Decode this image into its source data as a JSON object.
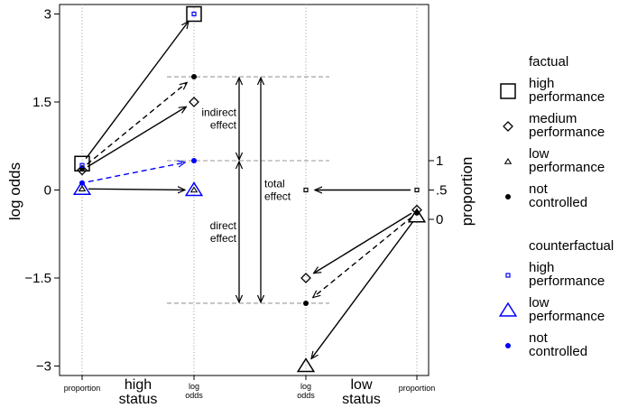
{
  "chart_data": {
    "type": "line",
    "ylabel": "log odds",
    "ylabel_right": "proportion",
    "ylim": [
      -3.15,
      3.15
    ],
    "y_ticks": [
      "3",
      "1.5",
      "0",
      "−1.5",
      "−3"
    ],
    "y_tick_values": [
      3,
      1.5,
      0,
      -1.5,
      -3
    ],
    "right_ticks": [
      {
        "label": "1",
        "log_odds": 0.5
      },
      {
        "label": ".5",
        "log_odds": 0
      },
      {
        "label": "0",
        "log_odds": -0.5
      }
    ],
    "x_columns": [
      {
        "key": "hs_prop",
        "label": "proportion"
      },
      {
        "key": "hs_logodds",
        "label": "log odds"
      },
      {
        "key": "ls_logodds",
        "label": "log odds"
      },
      {
        "key": "ls_prop",
        "label": "proportion"
      }
    ],
    "group_labels": [
      {
        "text": "high status",
        "between": [
          "hs_prop",
          "hs_logodds"
        ]
      },
      {
        "text": "low status",
        "between": [
          "ls_logodds",
          "ls_prop"
        ]
      }
    ],
    "points": [
      {
        "col": "hs_prop",
        "y": 0.45,
        "shape": "square",
        "color": "#000000",
        "size": "large"
      },
      {
        "col": "hs_prop",
        "y": 0.34,
        "shape": "diamond",
        "color": "#000000",
        "size": "medium"
      },
      {
        "col": "hs_prop",
        "y": 0.37,
        "shape": "circle",
        "color": "#000000",
        "size": "small"
      },
      {
        "col": "hs_prop",
        "y": 0.42,
        "shape": "square",
        "color": "#0000ff",
        "size": "tiny"
      },
      {
        "col": "hs_prop",
        "y": 0.12,
        "shape": "circle",
        "color": "#0000ff",
        "size": "small"
      },
      {
        "col": "hs_prop",
        "y": 0.02,
        "shape": "triangle",
        "color": "#0000ff",
        "size": "large"
      },
      {
        "col": "hs_prop",
        "y": 0.02,
        "shape": "triangle",
        "color": "#000000",
        "size": "small"
      },
      {
        "col": "hs_logodds",
        "y": 3.0,
        "shape": "square",
        "color": "#000000",
        "size": "large"
      },
      {
        "col": "hs_logodds",
        "y": 3.0,
        "shape": "square",
        "color": "#0000ff",
        "size": "tiny"
      },
      {
        "col": "hs_logodds",
        "y": 1.93,
        "shape": "circle",
        "color": "#000000",
        "size": "small"
      },
      {
        "col": "hs_logodds",
        "y": 1.5,
        "shape": "diamond",
        "color": "#000000",
        "size": "medium"
      },
      {
        "col": "hs_logodds",
        "y": 0.5,
        "shape": "circle",
        "color": "#0000ff",
        "size": "small"
      },
      {
        "col": "hs_logodds",
        "y": 0.0,
        "shape": "triangle",
        "color": "#0000ff",
        "size": "large"
      },
      {
        "col": "hs_logodds",
        "y": 0.0,
        "shape": "triangle",
        "color": "#000000",
        "size": "small"
      },
      {
        "col": "ls_logodds",
        "y": 0.0,
        "shape": "square",
        "color": "#000000",
        "size": "tiny"
      },
      {
        "col": "ls_logodds",
        "y": -1.5,
        "shape": "diamond",
        "color": "#000000",
        "size": "medium"
      },
      {
        "col": "ls_logodds",
        "y": -1.93,
        "shape": "circle",
        "color": "#000000",
        "size": "small"
      },
      {
        "col": "ls_logodds",
        "y": -3.0,
        "shape": "triangle",
        "color": "#000000",
        "size": "large"
      },
      {
        "col": "ls_prop",
        "y": 0.0,
        "shape": "square",
        "color": "#000000",
        "size": "tiny"
      },
      {
        "col": "ls_prop",
        "y": -0.34,
        "shape": "diamond",
        "color": "#000000",
        "size": "medium"
      },
      {
        "col": "ls_prop",
        "y": -0.39,
        "shape": "circle",
        "color": "#000000",
        "size": "small"
      },
      {
        "col": "ls_prop",
        "y": -0.45,
        "shape": "triangle",
        "color": "#000000",
        "size": "large"
      }
    ],
    "arrows": [
      {
        "from": [
          "hs_prop",
          0.45
        ],
        "to": [
          "hs_logodds",
          3.0
        ],
        "dash": false,
        "color": "#000000"
      },
      {
        "from": [
          "hs_prop",
          0.37
        ],
        "to": [
          "hs_logodds",
          1.93
        ],
        "dash": true,
        "color": "#000000"
      },
      {
        "from": [
          "hs_prop",
          0.34
        ],
        "to": [
          "hs_logodds",
          1.5
        ],
        "dash": false,
        "color": "#000000"
      },
      {
        "from": [
          "hs_prop",
          0.12
        ],
        "to": [
          "hs_logodds",
          0.5
        ],
        "dash": true,
        "color": "#0000ff"
      },
      {
        "from": [
          "hs_prop",
          0.02
        ],
        "to": [
          "hs_logodds",
          0.0
        ],
        "dash": false,
        "color": "#000000"
      },
      {
        "from": [
          "ls_prop",
          0.0
        ],
        "to": [
          "ls_logodds",
          0.0
        ],
        "dash": false,
        "color": "#000000"
      },
      {
        "from": [
          "ls_prop",
          -0.34
        ],
        "to": [
          "ls_logodds",
          -1.5
        ],
        "dash": false,
        "color": "#000000"
      },
      {
        "from": [
          "ls_prop",
          -0.39
        ],
        "to": [
          "ls_logodds",
          -1.93
        ],
        "dash": true,
        "color": "#000000"
      },
      {
        "from": [
          "ls_prop",
          -0.45
        ],
        "to": [
          "ls_logodds",
          -3.0
        ],
        "dash": false,
        "color": "#000000"
      }
    ],
    "reference_lines": [
      1.93,
      0.5,
      -1.93
    ],
    "effects": [
      {
        "label": [
          "indirect",
          "effect"
        ],
        "from": 1.93,
        "to": 0.5,
        "position": "inner"
      },
      {
        "label": [
          "direct",
          "effect"
        ],
        "from": 0.5,
        "to": -1.93,
        "position": "inner"
      },
      {
        "label": [
          "total",
          "effect"
        ],
        "from": 1.93,
        "to": -1.93,
        "position": "outer"
      }
    ],
    "legend": {
      "position": "right",
      "groups": [
        {
          "title": "factual",
          "entries": [
            {
              "label": [
                "high",
                "performance"
              ],
              "shape": "square",
              "color": "#000000",
              "size": "large"
            },
            {
              "label": [
                "medium",
                "performance"
              ],
              "shape": "diamond",
              "color": "#000000",
              "size": "medium"
            },
            {
              "label": [
                "low",
                "performance"
              ],
              "shape": "triangle",
              "color": "#000000",
              "size": "small"
            },
            {
              "label": [
                "not",
                "controlled"
              ],
              "shape": "circle",
              "color": "#000000",
              "size": "small"
            }
          ]
        },
        {
          "title": "counterfactual",
          "entries": [
            {
              "label": [
                "high",
                "performance"
              ],
              "shape": "square",
              "color": "#0000ff",
              "size": "tiny"
            },
            {
              "label": [
                "low",
                "performance"
              ],
              "shape": "triangle",
              "color": "#0000ff",
              "size": "large"
            },
            {
              "label": [
                "not",
                "controlled"
              ],
              "shape": "circle",
              "color": "#0000ff",
              "size": "small"
            }
          ]
        }
      ]
    },
    "grid": "dotted vertical lines at each column"
  }
}
